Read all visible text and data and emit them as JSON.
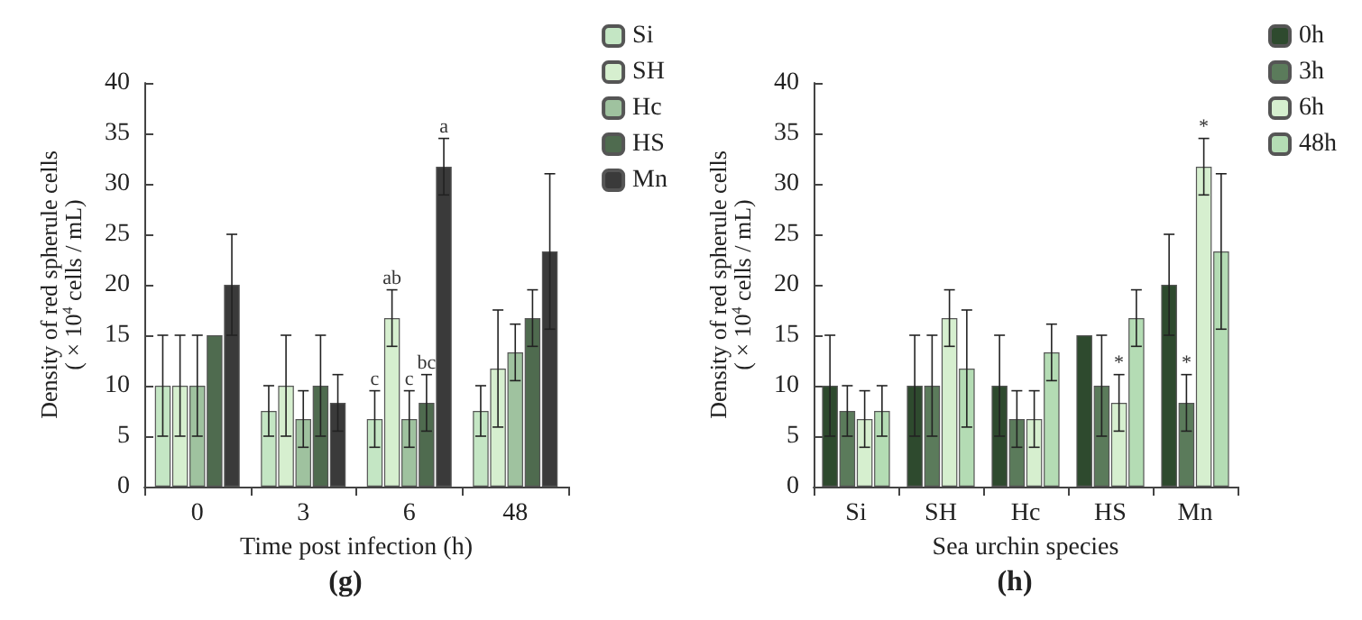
{
  "chart_data": [
    {
      "type": "bar",
      "title": "(g)",
      "xlabel": "Time post infection (h)",
      "ylabel": "Density of red spherule cells\n( × 10$^{4}$ cells / mL)",
      "categories": [
        "0",
        "3",
        "6",
        "48"
      ],
      "ylim": [
        0,
        40
      ],
      "yticks": [
        0,
        5,
        10,
        15,
        20,
        25,
        30,
        35,
        40
      ],
      "grid": false,
      "legend": "top right",
      "series": [
        {
          "name": "Si",
          "color": "#c4e6c4",
          "values": [
            10,
            7.5,
            6.7,
            7.5
          ],
          "errors": [
            5,
            2.5,
            2.8,
            2.5
          ],
          "value_labels": [
            null,
            null,
            "c",
            null
          ]
        },
        {
          "name": "SH",
          "color": "#d6efcf",
          "values": [
            10,
            10,
            16.7,
            11.7
          ],
          "errors": [
            5,
            5,
            2.8,
            5.8
          ],
          "value_labels": [
            null,
            null,
            "ab",
            null
          ]
        },
        {
          "name": "Hc",
          "color": "#9fc29f",
          "values": [
            10,
            6.7,
            6.7,
            13.3
          ],
          "errors": [
            5,
            2.8,
            2.8,
            2.8
          ],
          "value_labels": [
            null,
            null,
            "c",
            null
          ]
        },
        {
          "name": "HS",
          "color": "#4f6b4f",
          "values": [
            15,
            10,
            8.3,
            16.7
          ],
          "errors": [
            null,
            5,
            2.8,
            2.8
          ],
          "value_labels": [
            null,
            null,
            "bc",
            null
          ]
        },
        {
          "name": "Mn",
          "color": "#3a3a3a",
          "values": [
            20,
            8.3,
            31.7,
            23.3
          ],
          "errors": [
            5,
            2.8,
            2.8,
            7.7
          ],
          "value_labels": [
            null,
            null,
            "a",
            null
          ]
        }
      ]
    },
    {
      "type": "bar",
      "title": "(h)",
      "xlabel": "Sea urchin species",
      "ylabel": "Density of red spherule cells\n( × 10$^{4}$ cells / mL)",
      "categories": [
        "Si",
        "SH",
        "Hc",
        "HS",
        "Mn"
      ],
      "ylim": [
        0,
        40
      ],
      "yticks": [
        0,
        5,
        10,
        15,
        20,
        25,
        30,
        35,
        40
      ],
      "grid": false,
      "legend": "top right",
      "series": [
        {
          "name": "0h",
          "color": "#2e4a2e",
          "values": [
            10,
            10,
            10,
            15,
            20
          ],
          "errors": [
            5,
            5,
            5,
            null,
            5
          ],
          "value_labels": [
            null,
            null,
            null,
            null,
            null
          ]
        },
        {
          "name": "3h",
          "color": "#5b7b5b",
          "values": [
            7.5,
            10,
            6.7,
            10,
            8.3
          ],
          "errors": [
            2.5,
            5,
            2.8,
            5,
            2.8
          ],
          "value_labels": [
            null,
            null,
            null,
            null,
            "*"
          ]
        },
        {
          "name": "6h",
          "color": "#d6efcf",
          "values": [
            6.7,
            16.7,
            6.7,
            8.3,
            31.7
          ],
          "errors": [
            2.8,
            2.8,
            2.8,
            2.8,
            2.8
          ],
          "value_labels": [
            null,
            null,
            null,
            "*",
            "*"
          ]
        },
        {
          "name": "48h",
          "color": "#b4dcb4",
          "values": [
            7.5,
            11.7,
            13.3,
            16.7,
            23.3
          ],
          "errors": [
            2.5,
            5.8,
            2.8,
            2.8,
            7.7
          ],
          "value_labels": [
            null,
            null,
            null,
            null,
            null
          ]
        }
      ]
    }
  ]
}
